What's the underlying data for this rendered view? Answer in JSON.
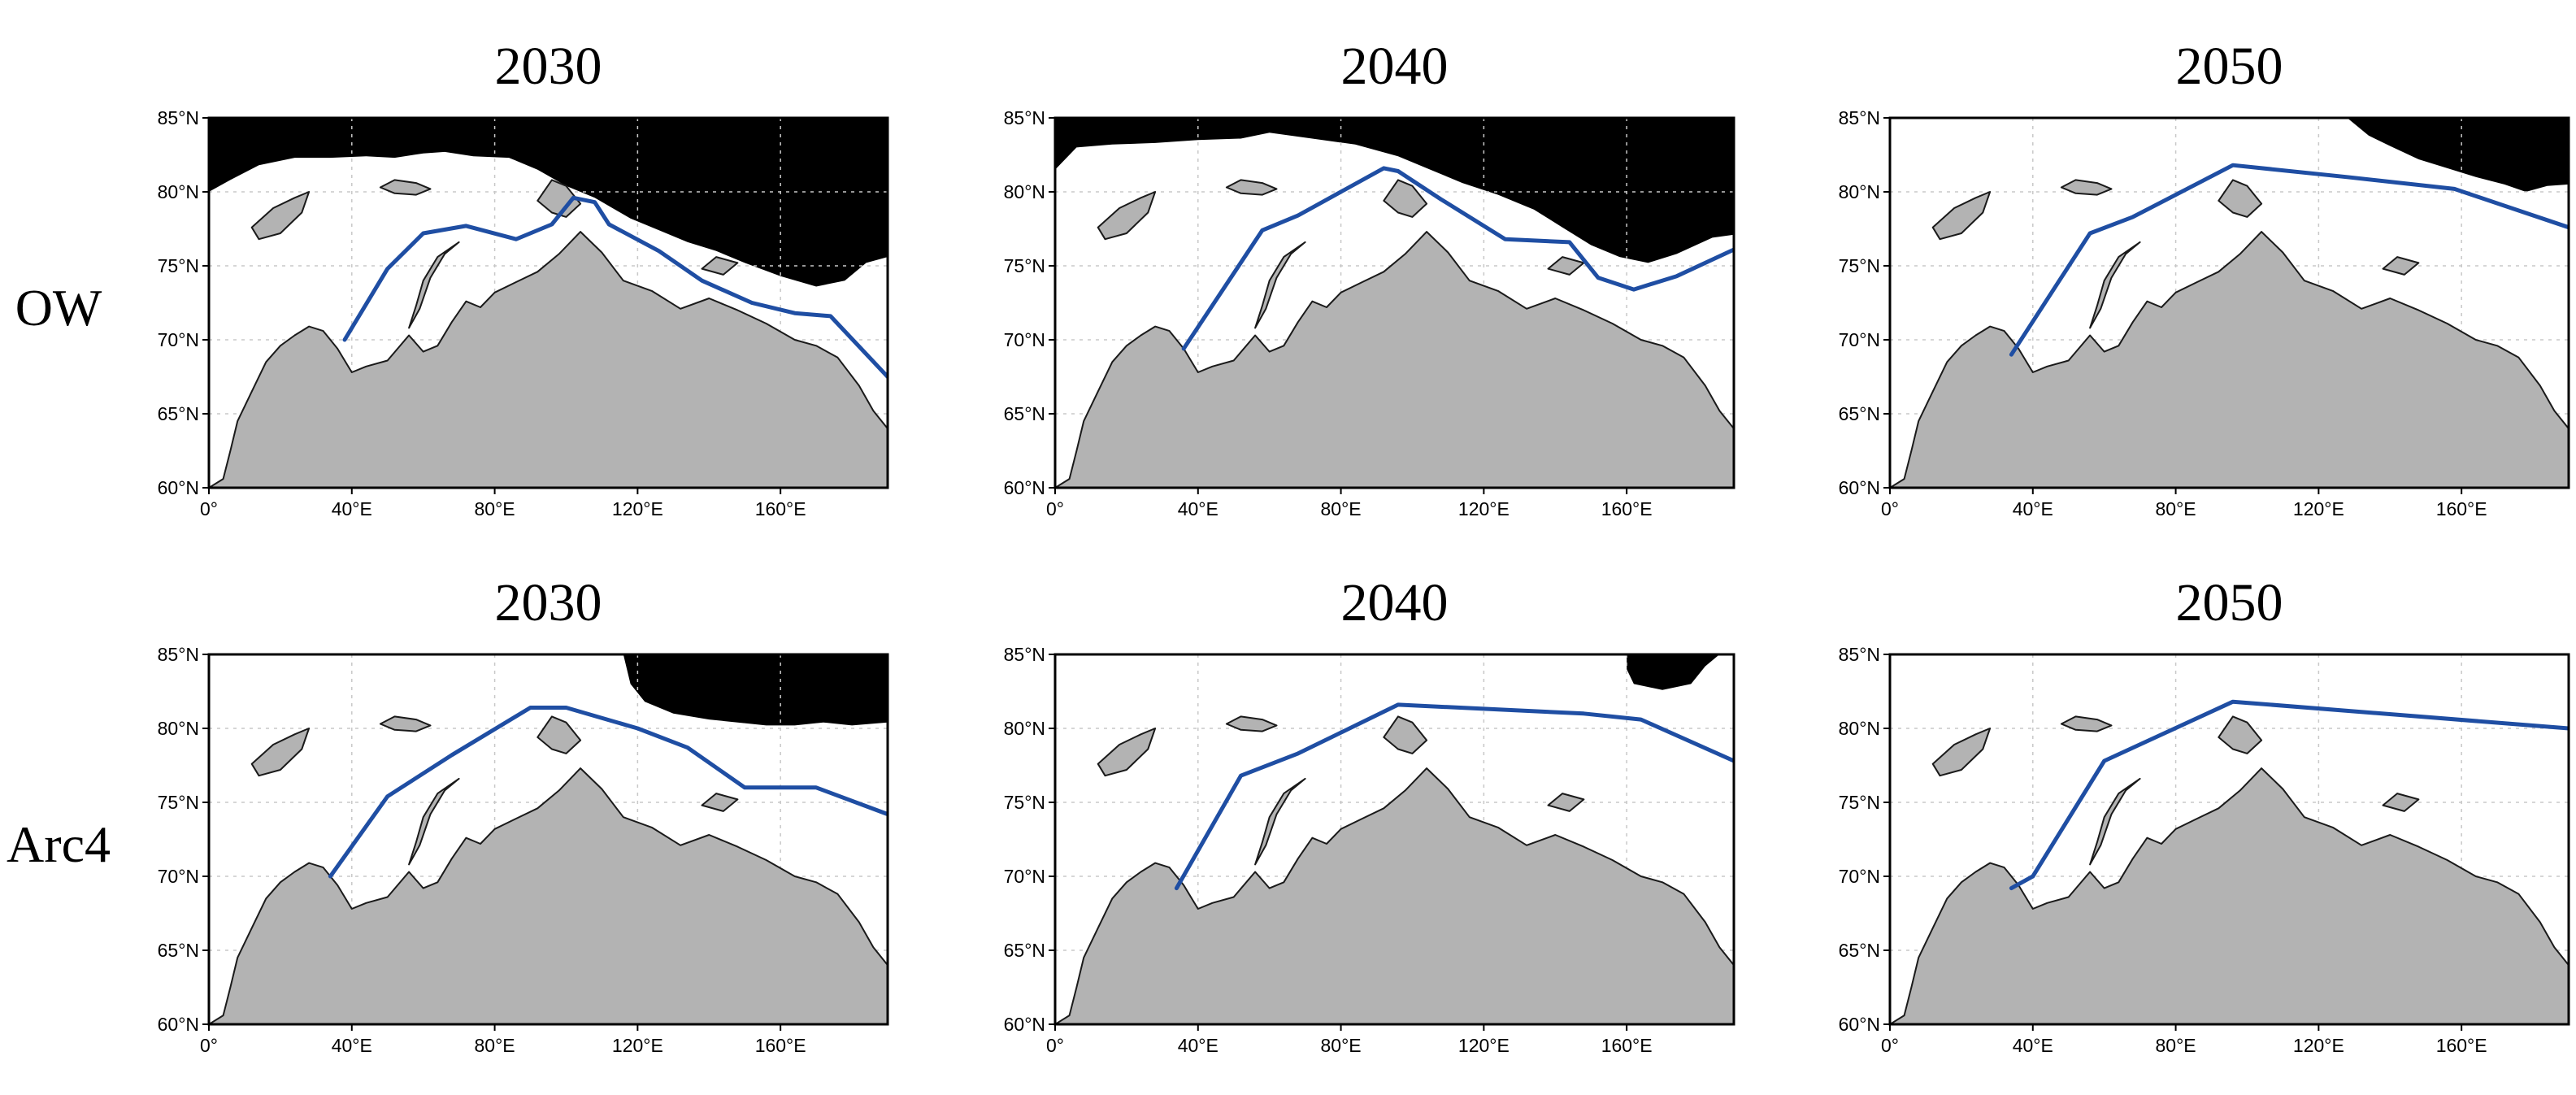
{
  "rows": [
    {
      "label": "OW",
      "panels": [
        {
          "title": "2030",
          "ice_edge": [
            [
              0,
              80.0
            ],
            [
              6,
              80.8
            ],
            [
              14,
              81.8
            ],
            [
              24,
              82.3
            ],
            [
              34,
              82.3
            ],
            [
              44,
              82.4
            ],
            [
              52,
              82.3
            ],
            [
              60,
              82.6
            ],
            [
              66,
              82.7
            ],
            [
              74,
              82.4
            ],
            [
              84,
              82.3
            ],
            [
              92,
              81.5
            ],
            [
              100,
              80.4
            ],
            [
              108,
              79.6
            ],
            [
              118,
              78.2
            ],
            [
              126,
              77.4
            ],
            [
              134,
              76.6
            ],
            [
              142,
              76.0
            ],
            [
              150,
              75.2
            ],
            [
              160,
              74.3
            ],
            [
              170,
              73.6
            ],
            [
              178,
              74.0
            ],
            [
              184,
              75.2
            ],
            [
              190,
              75.6
            ]
          ],
          "route": [
            [
              38,
              70.0
            ],
            [
              50,
              74.8
            ],
            [
              60,
              77.2
            ],
            [
              72,
              77.7
            ],
            [
              86,
              76.8
            ],
            [
              96,
              77.8
            ],
            [
              102,
              79.6
            ],
            [
              108,
              79.3
            ],
            [
              112,
              77.8
            ],
            [
              126,
              76.0
            ],
            [
              138,
              74.0
            ],
            [
              152,
              72.5
            ],
            [
              164,
              71.8
            ],
            [
              174,
              71.6
            ],
            [
              190,
              67.5
            ]
          ]
        },
        {
          "title": "2040",
          "ice_edge": [
            [
              0,
              81.5
            ],
            [
              6,
              83.0
            ],
            [
              16,
              83.2
            ],
            [
              28,
              83.3
            ],
            [
              40,
              83.5
            ],
            [
              52,
              83.6
            ],
            [
              60,
              84.0
            ],
            [
              72,
              83.6
            ],
            [
              84,
              83.2
            ],
            [
              96,
              82.4
            ],
            [
              104,
              81.6
            ],
            [
              114,
              80.6
            ],
            [
              124,
              79.8
            ],
            [
              134,
              78.8
            ],
            [
              142,
              77.6
            ],
            [
              150,
              76.4
            ],
            [
              158,
              75.6
            ],
            [
              166,
              75.2
            ],
            [
              174,
              75.8
            ],
            [
              184,
              76.9
            ],
            [
              190,
              77.1
            ]
          ],
          "route": [
            [
              36,
              69.4
            ],
            [
              58,
              77.4
            ],
            [
              68,
              78.4
            ],
            [
              92,
              81.6
            ],
            [
              96,
              81.4
            ],
            [
              108,
              79.5
            ],
            [
              126,
              76.8
            ],
            [
              144,
              76.6
            ],
            [
              152,
              74.2
            ],
            [
              162,
              73.4
            ],
            [
              174,
              74.3
            ],
            [
              190,
              76.1
            ]
          ]
        },
        {
          "title": "2050",
          "ice_edge": [
            [
              128,
              85.0
            ],
            [
              134,
              83.8
            ],
            [
              140,
              83.1
            ],
            [
              148,
              82.2
            ],
            [
              156,
              81.6
            ],
            [
              164,
              81.0
            ],
            [
              172,
              80.5
            ],
            [
              178,
              80.0
            ],
            [
              184,
              80.4
            ],
            [
              190,
              80.5
            ]
          ],
          "route": [
            [
              34,
              69.0
            ],
            [
              56,
              77.2
            ],
            [
              68,
              78.3
            ],
            [
              96,
              81.8
            ],
            [
              128,
              81.0
            ],
            [
              158,
              80.2
            ],
            [
              190,
              77.6
            ]
          ]
        }
      ]
    },
    {
      "label": "Arc4",
      "panels": [
        {
          "title": "2030",
          "ice_edge": [
            [
              116,
              85.0
            ],
            [
              118,
              83.0
            ],
            [
              122,
              81.8
            ],
            [
              130,
              81.0
            ],
            [
              140,
              80.6
            ],
            [
              148,
              80.4
            ],
            [
              156,
              80.2
            ],
            [
              164,
              80.2
            ],
            [
              172,
              80.4
            ],
            [
              180,
              80.2
            ],
            [
              190,
              80.4
            ]
          ],
          "route": [
            [
              34,
              70.0
            ],
            [
              50,
              75.4
            ],
            [
              68,
              78.2
            ],
            [
              90,
              81.4
            ],
            [
              100,
              81.4
            ],
            [
              120,
              80.0
            ],
            [
              134,
              78.7
            ],
            [
              150,
              76.0
            ],
            [
              170,
              76.0
            ],
            [
              190,
              74.2
            ]
          ]
        },
        {
          "title": "2040",
          "ice_edge": [
            [
              160,
              84.0
            ],
            [
              162,
              83.0
            ],
            [
              170,
              82.6
            ],
            [
              178,
              83.0
            ],
            [
              182,
              84.2
            ],
            [
              186,
              85.0
            ]
          ],
          "route": [
            [
              34,
              69.2
            ],
            [
              52,
              76.8
            ],
            [
              68,
              78.3
            ],
            [
              96,
              81.6
            ],
            [
              148,
              81.0
            ],
            [
              164,
              80.6
            ],
            [
              190,
              77.8
            ]
          ]
        },
        {
          "title": "2050",
          "ice_edge": [],
          "route": [
            [
              34,
              69.2
            ],
            [
              40,
              70.0
            ],
            [
              60,
              77.8
            ],
            [
              96,
              81.8
            ],
            [
              190,
              80.0
            ]
          ]
        }
      ]
    }
  ],
  "axes": {
    "lon_range": [
      0,
      190
    ],
    "lat_range": [
      60,
      85
    ],
    "lon_ticks": [
      0,
      40,
      80,
      120,
      160
    ],
    "lon_labels": [
      "0°",
      "40°E",
      "80°E",
      "120°E",
      "160°E"
    ],
    "lat_ticks": [
      60,
      65,
      70,
      75,
      80,
      85
    ],
    "lat_labels": [
      "60°N",
      "65°N",
      "70°N",
      "75°N",
      "80°N",
      "85°N"
    ]
  },
  "colors": {
    "land": "#b3b3b3",
    "sea_ice": "#000000",
    "open_water": "#ffffff",
    "route": "#1f4ea3"
  }
}
